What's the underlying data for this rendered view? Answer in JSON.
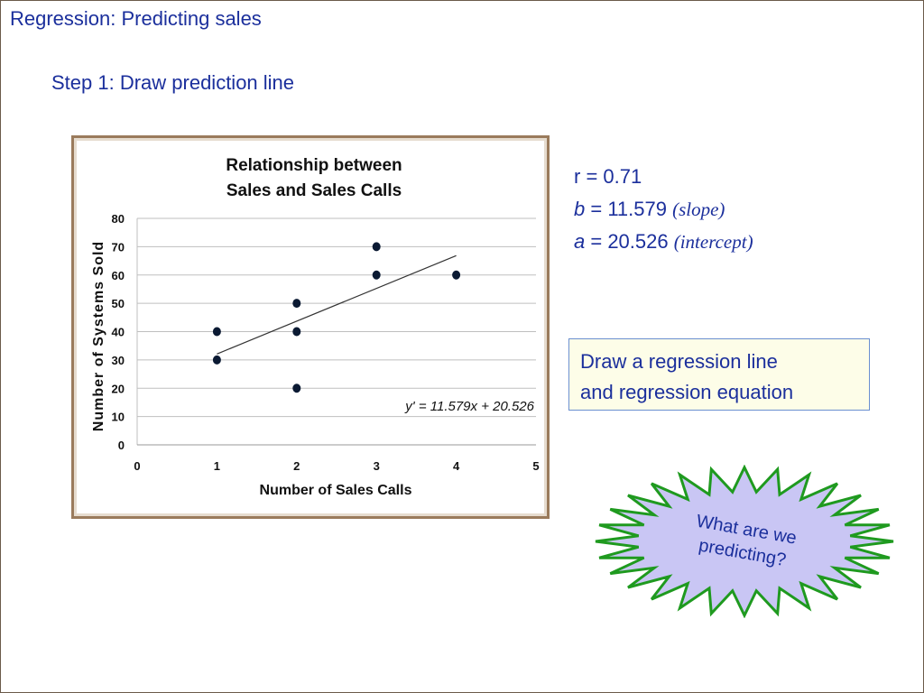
{
  "slide": {
    "title": "Regression: Predicting sales",
    "subtitle": "Step 1: Draw prediction line"
  },
  "stats": {
    "r_label": "r =  ",
    "r_value": "0.71",
    "b_var": "b",
    "b_eq": " = 11.579 ",
    "b_note": "(slope)",
    "a_var": "a",
    "a_eq": " = 20.526 ",
    "a_note": "(intercept)"
  },
  "callout": {
    "line1": "Draw a regression line",
    "line2": "and regression equation"
  },
  "burst": {
    "line1": "What are we",
    "line2": "predicting?",
    "fill": "#c9c6f4",
    "stroke": "#1f9a1f"
  },
  "chart_data": {
    "type": "scatter",
    "title": [
      "Relationship between",
      "Sales and Sales Calls"
    ],
    "xlabel": "Number of Sales Calls",
    "ylabel": "Number of Systems Sold",
    "xlim": [
      0,
      5
    ],
    "ylim": [
      0,
      80
    ],
    "xticks": [
      0,
      1,
      2,
      3,
      4,
      5
    ],
    "yticks": [
      0,
      10,
      20,
      30,
      40,
      50,
      60,
      70,
      80
    ],
    "grid": "horizontal",
    "points": [
      {
        "x": 1,
        "y": 30
      },
      {
        "x": 1,
        "y": 40
      },
      {
        "x": 2,
        "y": 20
      },
      {
        "x": 2,
        "y": 40
      },
      {
        "x": 2,
        "y": 50
      },
      {
        "x": 3,
        "y": 60
      },
      {
        "x": 3,
        "y": 70
      },
      {
        "x": 4,
        "y": 60
      }
    ],
    "regression": {
      "slope": 11.579,
      "intercept": 20.526,
      "x_range": [
        1,
        4
      ]
    },
    "equation_label": "y' = 11.579x + 20.526",
    "colors": {
      "point": "#0b1a33",
      "line": "#333333",
      "grid": "#bfbfbf"
    }
  }
}
